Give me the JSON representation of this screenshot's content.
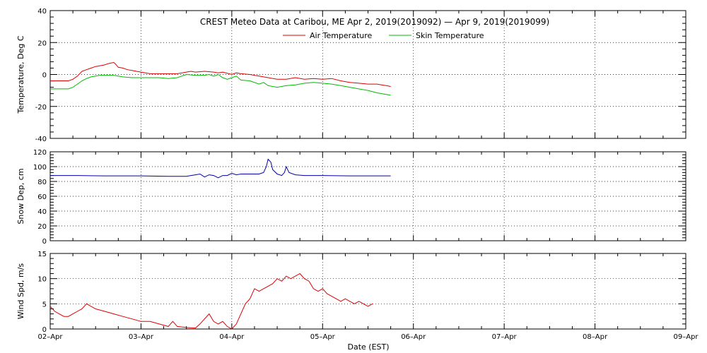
{
  "chart_data": {
    "type": "line",
    "title": "CREST Meteo Data at Caribou, ME   Apr  2, 2019(2019092) — Apr  9, 2019(2019099)",
    "xlabel": "Date (EST)",
    "x_tick_labels": [
      "02–Apr",
      "03–Apr",
      "04–Apr",
      "05–Apr",
      "06–Apr",
      "07–Apr",
      "08–Apr",
      "09–Apr"
    ],
    "xlim_days": [
      0,
      7
    ],
    "grid": true,
    "legend_position": "top",
    "panels": [
      {
        "id": "temperature",
        "ylabel": "Temperature, Deg C",
        "ylim": [
          -40,
          40
        ],
        "y_ticks": [
          -40,
          -20,
          0,
          20,
          40
        ],
        "series": [
          {
            "name": "Air Temperature",
            "color": "#dd0000",
            "points": [
              [
                0.0,
                -4
              ],
              [
                0.1,
                -4
              ],
              [
                0.2,
                -4
              ],
              [
                0.25,
                -3
              ],
              [
                0.3,
                -1
              ],
              [
                0.35,
                2
              ],
              [
                0.4,
                3
              ],
              [
                0.45,
                4
              ],
              [
                0.5,
                5
              ],
              [
                0.55,
                5.5
              ],
              [
                0.6,
                6
              ],
              [
                0.65,
                7
              ],
              [
                0.7,
                7.5
              ],
              [
                0.72,
                6.5
              ],
              [
                0.75,
                4.5
              ],
              [
                0.8,
                4
              ],
              [
                0.85,
                3
              ],
              [
                0.9,
                2.5
              ],
              [
                0.95,
                2
              ],
              [
                1.0,
                1.5
              ],
              [
                1.05,
                1
              ],
              [
                1.1,
                0.5
              ],
              [
                1.2,
                0.5
              ],
              [
                1.3,
                0.5
              ],
              [
                1.4,
                0.5
              ],
              [
                1.5,
                1.5
              ],
              [
                1.55,
                2
              ],
              [
                1.6,
                1.5
              ],
              [
                1.7,
                2
              ],
              [
                1.8,
                1.5
              ],
              [
                1.85,
                1
              ],
              [
                1.9,
                1.5
              ],
              [
                2.0,
                0
              ],
              [
                2.05,
                1
              ],
              [
                2.1,
                0.5
              ],
              [
                2.2,
                0
              ],
              [
                2.3,
                -1
              ],
              [
                2.4,
                -2
              ],
              [
                2.5,
                -3
              ],
              [
                2.6,
                -3
              ],
              [
                2.7,
                -2
              ],
              [
                2.8,
                -3
              ],
              [
                2.9,
                -2.5
              ],
              [
                3.0,
                -3
              ],
              [
                3.1,
                -2.5
              ],
              [
                3.2,
                -4
              ],
              [
                3.3,
                -5
              ],
              [
                3.4,
                -5.5
              ],
              [
                3.5,
                -6
              ],
              [
                3.6,
                -6
              ],
              [
                3.65,
                -6.5
              ],
              [
                3.7,
                -7
              ],
              [
                3.75,
                -7.5
              ]
            ]
          },
          {
            "name": "Skin Temperature",
            "color": "#00bb00",
            "points": [
              [
                0.0,
                -9
              ],
              [
                0.1,
                -9
              ],
              [
                0.2,
                -9
              ],
              [
                0.25,
                -8
              ],
              [
                0.3,
                -6
              ],
              [
                0.35,
                -4
              ],
              [
                0.4,
                -2.5
              ],
              [
                0.45,
                -1.5
              ],
              [
                0.5,
                -1
              ],
              [
                0.55,
                -0.5
              ],
              [
                0.6,
                -0.5
              ],
              [
                0.65,
                -0.5
              ],
              [
                0.7,
                -0.5
              ],
              [
                0.75,
                -1
              ],
              [
                0.8,
                -1.5
              ],
              [
                0.9,
                -2
              ],
              [
                1.0,
                -2
              ],
              [
                1.1,
                -2
              ],
              [
                1.2,
                -2
              ],
              [
                1.3,
                -2.5
              ],
              [
                1.4,
                -2
              ],
              [
                1.5,
                0
              ],
              [
                1.6,
                -0.5
              ],
              [
                1.7,
                -0.5
              ],
              [
                1.75,
                0
              ],
              [
                1.8,
                -1
              ],
              [
                1.85,
                0
              ],
              [
                1.9,
                -2
              ],
              [
                1.95,
                -3
              ],
              [
                2.0,
                -2
              ],
              [
                2.05,
                -1
              ],
              [
                2.1,
                -3.5
              ],
              [
                2.2,
                -4
              ],
              [
                2.3,
                -6
              ],
              [
                2.35,
                -5
              ],
              [
                2.4,
                -7
              ],
              [
                2.5,
                -8
              ],
              [
                2.6,
                -7
              ],
              [
                2.7,
                -6.5
              ],
              [
                2.8,
                -5.5
              ],
              [
                2.9,
                -5
              ],
              [
                3.0,
                -5.5
              ],
              [
                3.1,
                -6
              ],
              [
                3.2,
                -7
              ],
              [
                3.3,
                -8
              ],
              [
                3.4,
                -9
              ],
              [
                3.5,
                -10
              ],
              [
                3.6,
                -11.5
              ],
              [
                3.7,
                -12.5
              ],
              [
                3.75,
                -13
              ]
            ]
          }
        ]
      },
      {
        "id": "snow_depth",
        "ylabel": "Snow Dep, cm",
        "ylim": [
          0,
          120
        ],
        "y_ticks": [
          0,
          20,
          40,
          60,
          80,
          100,
          120
        ],
        "series": [
          {
            "name": "",
            "color": "#0000aa",
            "points": [
              [
                0.0,
                88
              ],
              [
                0.3,
                88
              ],
              [
                0.6,
                87.5
              ],
              [
                1.0,
                87.5
              ],
              [
                1.3,
                87
              ],
              [
                1.5,
                87
              ],
              [
                1.55,
                88
              ],
              [
                1.6,
                89
              ],
              [
                1.65,
                90
              ],
              [
                1.7,
                86
              ],
              [
                1.75,
                89
              ],
              [
                1.8,
                88
              ],
              [
                1.85,
                85
              ],
              [
                1.9,
                88
              ],
              [
                1.95,
                88
              ],
              [
                2.0,
                91
              ],
              [
                2.05,
                89
              ],
              [
                2.1,
                90
              ],
              [
                2.2,
                90
              ],
              [
                2.3,
                90
              ],
              [
                2.35,
                92
              ],
              [
                2.38,
                100
              ],
              [
                2.4,
                110
              ],
              [
                2.43,
                106
              ],
              [
                2.45,
                96
              ],
              [
                2.5,
                90
              ],
              [
                2.55,
                88
              ],
              [
                2.58,
                92
              ],
              [
                2.6,
                100
              ],
              [
                2.63,
                92
              ],
              [
                2.7,
                89
              ],
              [
                2.8,
                88
              ],
              [
                3.0,
                88
              ],
              [
                3.3,
                87.5
              ],
              [
                3.6,
                87.5
              ],
              [
                3.75,
                87.5
              ]
            ]
          }
        ]
      },
      {
        "id": "wind_speed",
        "ylabel": "Wind Spd, m/s",
        "ylim": [
          0,
          15
        ],
        "y_ticks": [
          0,
          5,
          10,
          15
        ],
        "series": [
          {
            "name": "",
            "color": "#dd0000",
            "points": [
              [
                0.0,
                4.5
              ],
              [
                0.05,
                3.5
              ],
              [
                0.1,
                3
              ],
              [
                0.15,
                2.5
              ],
              [
                0.2,
                2.5
              ],
              [
                0.25,
                3
              ],
              [
                0.3,
                3.5
              ],
              [
                0.35,
                4
              ],
              [
                0.4,
                5
              ],
              [
                0.45,
                4.5
              ],
              [
                0.5,
                4
              ],
              [
                0.6,
                3.5
              ],
              [
                0.7,
                3
              ],
              [
                0.8,
                2.5
              ],
              [
                0.9,
                2
              ],
              [
                1.0,
                1.5
              ],
              [
                1.1,
                1.5
              ],
              [
                1.2,
                1
              ],
              [
                1.3,
                0.5
              ],
              [
                1.35,
                1.5
              ],
              [
                1.4,
                0.5
              ],
              [
                1.5,
                0.3
              ],
              [
                1.6,
                0.2
              ],
              [
                1.65,
                1
              ],
              [
                1.7,
                2
              ],
              [
                1.75,
                3
              ],
              [
                1.8,
                1.5
              ],
              [
                1.85,
                1
              ],
              [
                1.9,
                1.5
              ],
              [
                1.95,
                0.5
              ],
              [
                2.0,
                0
              ],
              [
                2.05,
                1
              ],
              [
                2.1,
                3
              ],
              [
                2.15,
                5
              ],
              [
                2.2,
                6
              ],
              [
                2.25,
                8
              ],
              [
                2.3,
                7.5
              ],
              [
                2.35,
                8
              ],
              [
                2.4,
                8.5
              ],
              [
                2.45,
                9
              ],
              [
                2.5,
                10
              ],
              [
                2.55,
                9.5
              ],
              [
                2.6,
                10.5
              ],
              [
                2.65,
                10
              ],
              [
                2.7,
                10.5
              ],
              [
                2.75,
                11
              ],
              [
                2.8,
                10
              ],
              [
                2.85,
                9.5
              ],
              [
                2.9,
                8
              ],
              [
                2.95,
                7.5
              ],
              [
                3.0,
                8
              ],
              [
                3.05,
                7
              ],
              [
                3.1,
                6.5
              ],
              [
                3.15,
                6
              ],
              [
                3.2,
                5.5
              ],
              [
                3.25,
                6
              ],
              [
                3.3,
                5.5
              ],
              [
                3.35,
                5
              ],
              [
                3.4,
                5.5
              ],
              [
                3.45,
                5
              ],
              [
                3.5,
                4.5
              ],
              [
                3.55,
                5
              ]
            ]
          }
        ]
      }
    ]
  }
}
